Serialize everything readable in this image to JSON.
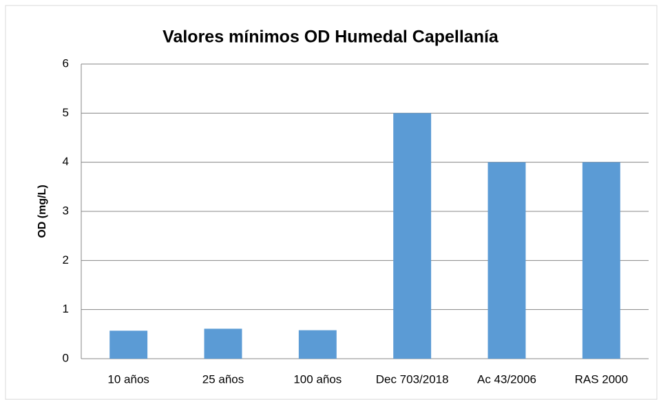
{
  "chart_data": {
    "type": "bar",
    "title": "Valores mínimos OD Humedal Capellanía",
    "y_label": "OD (mg/L)",
    "categories": [
      "10 años",
      "25 años",
      "100 años",
      "Dec 703/2018",
      "Ac 43/2006",
      "RAS 2000"
    ],
    "values": [
      0.57,
      0.61,
      0.58,
      5,
      4,
      4
    ],
    "color": "#5b9bd5",
    "ylim": [
      0,
      6
    ],
    "yticks": [
      0,
      1,
      2,
      3,
      4,
      5,
      6
    ],
    "grid": true
  }
}
